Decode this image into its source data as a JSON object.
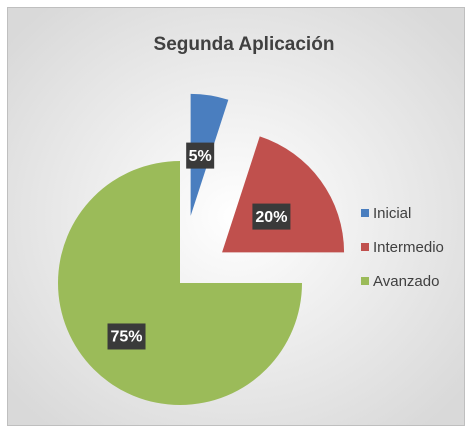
{
  "chart_data": {
    "type": "pie",
    "title": "Segunda Aplicación",
    "categories": [
      "Inicial",
      "Intermedio",
      "Avanzado"
    ],
    "values": [
      5,
      20,
      75
    ],
    "value_labels": [
      "5%",
      "20%",
      "75%"
    ],
    "colors": [
      "#4a7ebf",
      "#c0504d",
      "#9bbb59"
    ],
    "legend": "right"
  }
}
